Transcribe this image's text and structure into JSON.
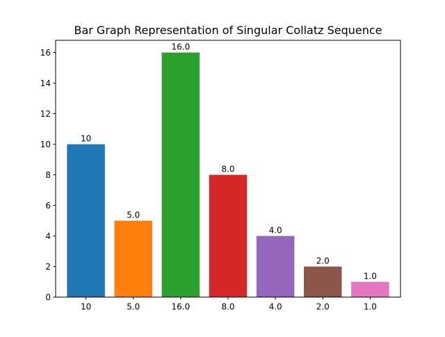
{
  "chart_data": {
    "type": "bar",
    "title": "Bar Graph Representation of Singular Collatz Sequence",
    "xlabel": "",
    "ylabel": "",
    "categories": [
      "10",
      "5.0",
      "16.0",
      "8.0",
      "4.0",
      "2.0",
      "1.0"
    ],
    "values": [
      10,
      5,
      16,
      8,
      4,
      2,
      1
    ],
    "data_labels": [
      "10",
      "5.0",
      "16.0",
      "8.0",
      "4.0",
      "2.0",
      "1.0"
    ],
    "colors": [
      "#1f77b4",
      "#ff7f0e",
      "#2ca02c",
      "#d62728",
      "#9467bd",
      "#8c564b",
      "#e377c2"
    ],
    "ylim": [
      0,
      16.8
    ],
    "yticks": [
      0,
      2,
      4,
      6,
      8,
      10,
      12,
      14,
      16
    ],
    "grid": false,
    "legend": "none"
  }
}
